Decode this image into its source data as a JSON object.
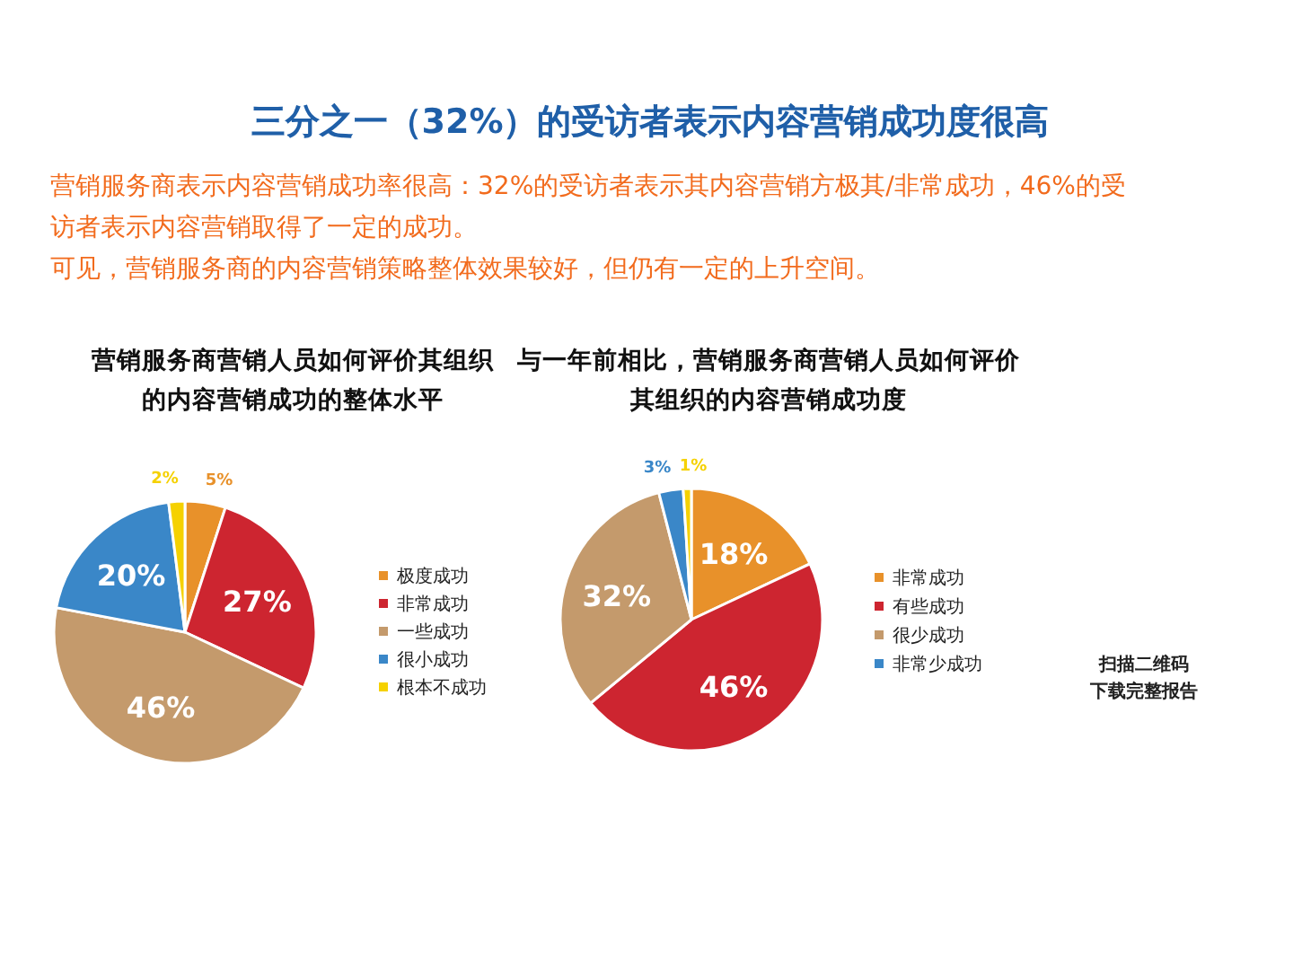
{
  "chart_data": [
    {
      "type": "other",
      "title": "三分之一（32%）的受访者表示内容营销成功度很高",
      "annotations": [
        "营销服务商表示内容营销成功率很高：32%的受访者表示其内容营销方极其/非常成功，46%的受访者表示内容营销取得了一定的成功。",
        "可见，营销服务商的内容营销策略整体效果较好，但仍有一定的上升空间。"
      ]
    },
    {
      "type": "pie",
      "title": "营销服务商营销人员如何评价其组织的内容营销成功的整体水平",
      "categories": [
        "极度成功",
        "非常成功",
        "一些成功",
        "很小成功",
        "根本不成功"
      ],
      "values": [
        5,
        27,
        46,
        20,
        2
      ],
      "value_labels": [
        "5%",
        "27%",
        "46%",
        "20%",
        "2%"
      ],
      "colors": [
        "#e8912a",
        "#cd2530",
        "#c49a6c",
        "#3a87c8",
        "#f5d100"
      ],
      "legend": "right"
    },
    {
      "type": "pie",
      "title": "与一年前相比，营销服务商营销人员如何评价其组织的内容营销成功度",
      "categories": [
        "非常成功",
        "有些成功",
        "很少成功",
        "非常少成功",
        null
      ],
      "values": [
        18,
        46,
        32,
        3,
        1
      ],
      "value_labels": [
        "18%",
        "46%",
        "32%",
        "3%",
        "1%"
      ],
      "colors": [
        "#e8912a",
        "#cd2530",
        "#c49a6c",
        "#3a87c8",
        "#f5d100"
      ],
      "legend": "right",
      "annotations": [
        "扫描二维码",
        "下载完整报告"
      ]
    }
  ]
}
